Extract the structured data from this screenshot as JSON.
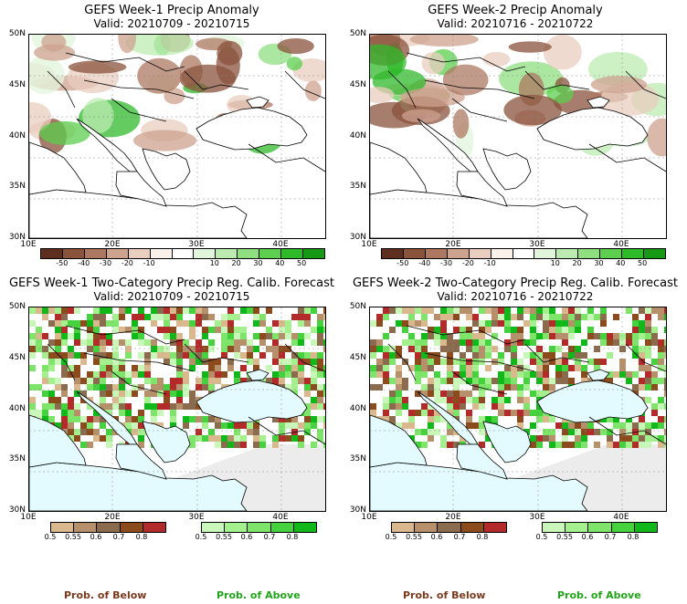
{
  "panels": [
    {
      "title": "GEFS Week-1 Precip Anomaly",
      "valid": "Valid: 20210709 - 20210715"
    },
    {
      "title": "GEFS Week-2 Precip Anomaly",
      "valid": "Valid: 20210716 - 20210722"
    },
    {
      "title": "GEFS Week-1 Two-Category Precip Reg. Calib. Forecast",
      "valid": "Valid: 20210709 - 20210715"
    },
    {
      "title": "GEFS Week-2 Two-Category Precip Reg. Calib. Forecast",
      "valid": "Valid: 20210716 - 20210722"
    }
  ],
  "axes": {
    "lat_labels": [
      "50N",
      "45N",
      "40N",
      "35N",
      "30N"
    ],
    "lon_labels": [
      "10E",
      "20E",
      "30E",
      "40E"
    ]
  },
  "anomaly_colorbar": {
    "ticks": [
      "-50",
      "-40",
      "-30",
      "-20",
      "-10",
      "10",
      "20",
      "30",
      "40",
      "50"
    ],
    "colors": [
      "#5e2f1f",
      "#8a533c",
      "#ad7862",
      "#cda28f",
      "#e9cdbf",
      "#faf1ea",
      "#ffffff",
      "#e1f5dc",
      "#bcebb1",
      "#8fdf80",
      "#5ccf4f",
      "#2fba2a",
      "#169a16"
    ]
  },
  "prob_below_colorbar": {
    "ticks": [
      "0.5",
      "0.55",
      "0.6",
      "0.7",
      "0.8"
    ],
    "colors": [
      "#d9b88e",
      "#b5906b",
      "#8a6b4e",
      "#8b4b1d",
      "#b22a2a"
    ],
    "label": "Prob. of Below"
  },
  "prob_above_colorbar": {
    "ticks": [
      "0.5",
      "0.55",
      "0.6",
      "0.7",
      "0.8"
    ],
    "colors": [
      "#c9f7b9",
      "#a4ef8e",
      "#7fe46a",
      "#45d23e",
      "#10b81a"
    ],
    "label": "Prob. of Above"
  },
  "colors": {
    "sea": "#e3fbfe",
    "land_missing": "#ececec",
    "border": "#000000",
    "below_label": "#7a3a1f",
    "above_label": "#22a41a"
  }
}
